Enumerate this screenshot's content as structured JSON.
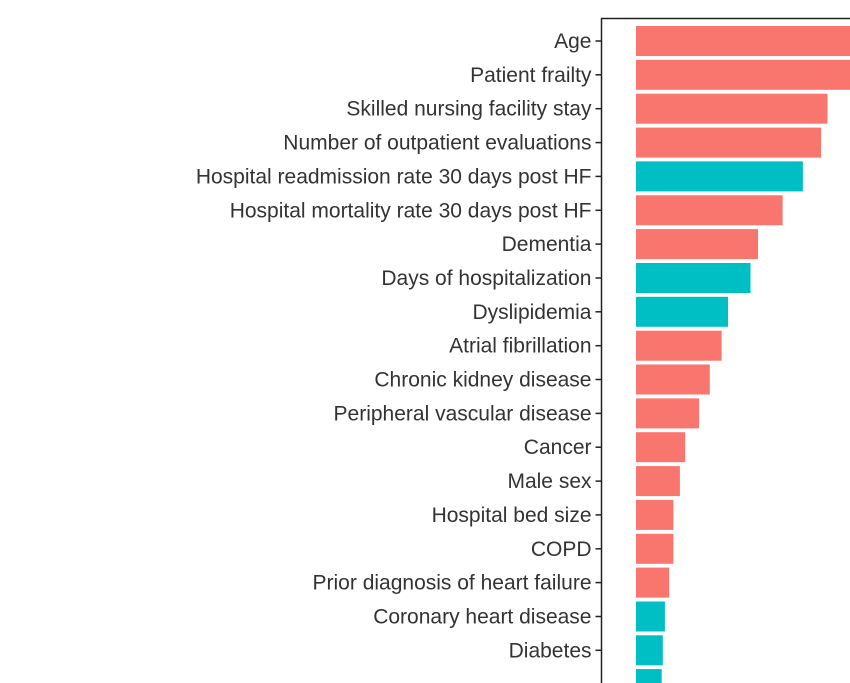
{
  "chart_data": {
    "type": "bar",
    "orientation": "horizontal",
    "title": "",
    "xlabel": "",
    "ylabel": "",
    "categories": [
      "Age",
      "Patient frailty",
      "Skilled nursing facility stay",
      "Number of outpatient evaluations",
      "Hospital readmission rate 30 days post HF",
      "Hospital mortality rate 30 days post HF",
      "Dementia",
      "Days of hospitalization",
      "Dyslipidemia",
      "Atrial fibrillation",
      "Chronic kidney disease",
      "Peripheral vascular disease",
      "Cancer",
      "Male sex",
      "Hospital bed size",
      "COPD",
      "Prior diagnosis of heart failure",
      "Coronary heart disease",
      "Diabetes"
    ],
    "values": [
      100,
      100,
      89.5,
      86.5,
      78,
      68.5,
      57,
      53.5,
      43,
      40,
      34.5,
      29.5,
      23,
      20.5,
      17.5,
      17.5,
      15.5,
      13.5,
      12.5
    ],
    "groups": [
      "red",
      "red",
      "red",
      "red",
      "teal",
      "red",
      "red",
      "teal",
      "teal",
      "red",
      "red",
      "red",
      "red",
      "red",
      "red",
      "red",
      "red",
      "teal",
      "teal"
    ],
    "colors": {
      "red": "#F8766D",
      "teal": "#00BFC4"
    },
    "xlim": [
      0,
      100
    ],
    "grid": false,
    "legend": "none",
    "cropped": "right and bottom edges"
  }
}
